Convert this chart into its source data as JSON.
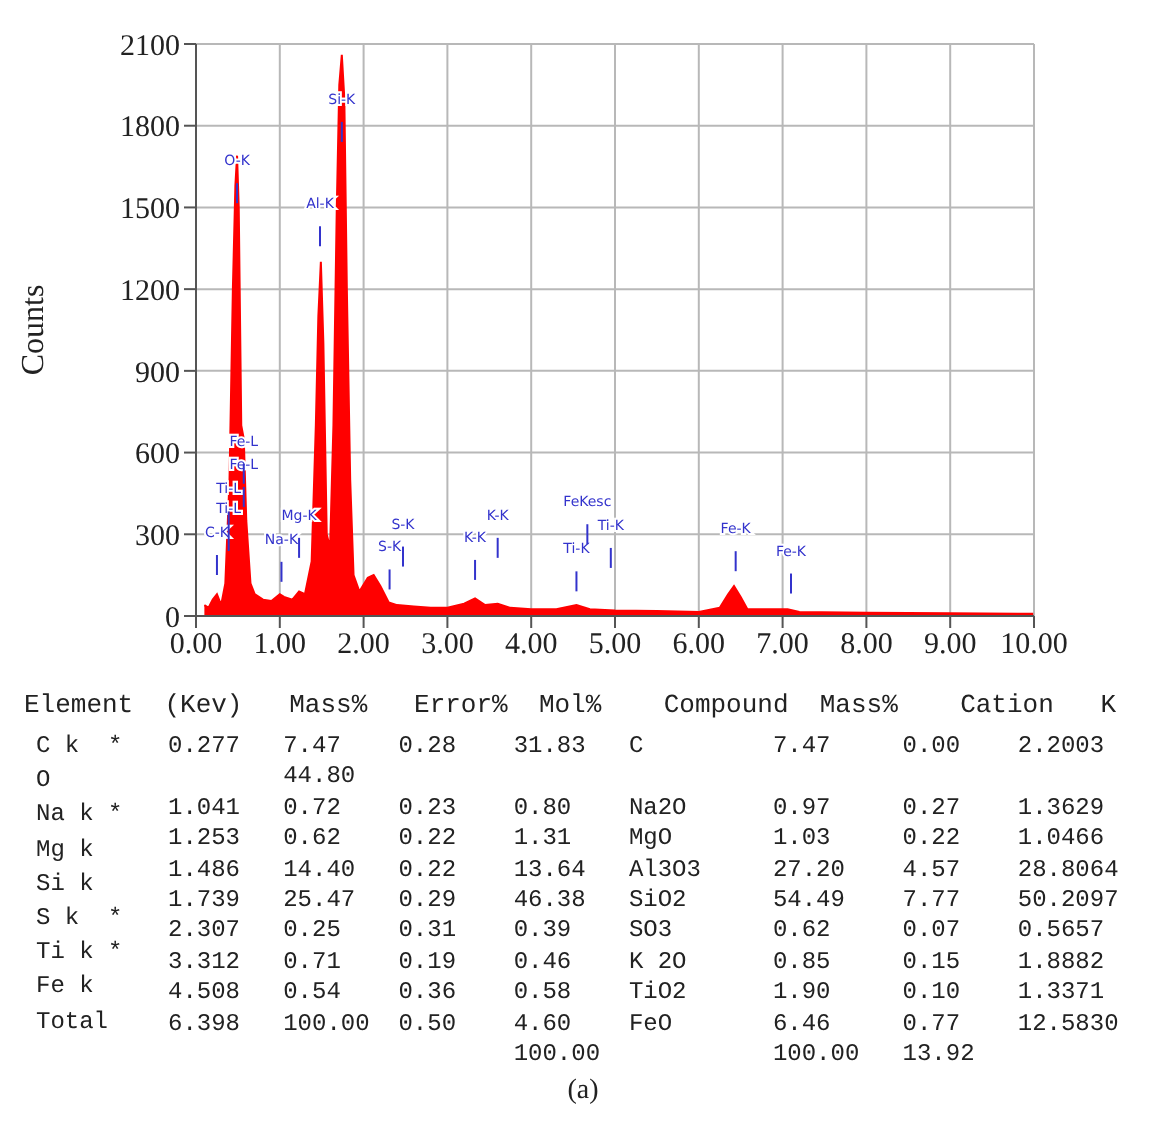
{
  "chart_data": {
    "type": "area",
    "ylabel": "Counts",
    "color": "#ff0000",
    "x": [
      0.1,
      0.15,
      0.2,
      0.25,
      0.3,
      0.35,
      0.4,
      0.44,
      0.47,
      0.49,
      0.51,
      0.54,
      0.57,
      0.6,
      0.65,
      0.7,
      0.8,
      0.9,
      1.0,
      1.05,
      1.15,
      1.23,
      1.3,
      1.38,
      1.43,
      1.46,
      1.49,
      1.52,
      1.56,
      1.6,
      1.64,
      1.68,
      1.71,
      1.74,
      1.77,
      1.8,
      1.84,
      1.88,
      1.95,
      2.05,
      2.12,
      2.2,
      2.3,
      2.4,
      2.6,
      2.8,
      3.0,
      3.2,
      3.33,
      3.45,
      3.6,
      3.75,
      4.0,
      4.3,
      4.54,
      4.7,
      5.0,
      5.5,
      6.0,
      6.25,
      6.35,
      6.42,
      6.5,
      6.58,
      7.06,
      7.2,
      8.0,
      9.0,
      9.99
    ],
    "values": [
      40,
      30,
      60,
      80,
      40,
      120,
      500,
      1200,
      1580,
      1690,
      1500,
      700,
      650,
      350,
      120,
      80,
      60,
      55,
      80,
      70,
      60,
      90,
      80,
      200,
      700,
      1100,
      1300,
      1000,
      300,
      250,
      700,
      1500,
      1950,
      2060,
      1900,
      1200,
      500,
      150,
      90,
      140,
      150,
      110,
      50,
      40,
      35,
      30,
      30,
      45,
      65,
      40,
      45,
      30,
      25,
      25,
      40,
      25,
      20,
      18,
      15,
      30,
      80,
      110,
      70,
      25,
      25,
      15,
      12,
      10,
      8
    ],
    "xlim": [
      0,
      10
    ],
    "xticks": [
      {
        "value": 0,
        "label": "0.00"
      },
      {
        "value": 1,
        "label": "1.00"
      },
      {
        "value": 2,
        "label": "2.00"
      },
      {
        "value": 3,
        "label": "3.00"
      },
      {
        "value": 4,
        "label": "4.00"
      },
      {
        "value": 5,
        "label": "5.00"
      },
      {
        "value": 6,
        "label": "6.00"
      },
      {
        "value": 7,
        "label": "7.00"
      },
      {
        "value": 8,
        "label": "8.00"
      },
      {
        "value": 9,
        "label": "9.00"
      },
      {
        "value": 10,
        "label": "10.00"
      }
    ],
    "ylim": [
      0,
      2100
    ],
    "yticks": [
      0,
      300,
      600,
      900,
      1200,
      1500,
      1800,
      2100
    ],
    "grid": true,
    "annotations": [
      "C-K",
      "Ti-L",
      "Ti-L",
      "Fe-L",
      "Fe-L",
      "O-K",
      "Na-K",
      "Mg-K",
      "Al-K",
      "Si-K",
      "S-K",
      "S-K",
      "K-K",
      "K-K",
      "Ti-K",
      "FeKesc",
      "Ti-K",
      "Fe-K",
      "Fe-K",
      "Element  (Kev)   Mass%   Error%  Mol%    Compound  Mass%    Cation   K",
      "C k  *",
      "O",
      "Na k *",
      "Mg k",
      "Si k",
      "S k  *",
      "Ti k *",
      "Fe k",
      "Total",
      "0.277   7.47    0.28    31.83   C         7.47     0.00    2.2003",
      "        44.80",
      "1.041   0.72    0.23    0.80    Na2O      0.97     0.27    1.3629",
      "1.253   0.62    0.22    1.31    MgO       1.03     0.22    1.0466",
      "1.486   14.40   0.22    13.64   Al3O3     27.20    4.57    28.8064",
      "1.739   25.47   0.29    46.38   SiO2      54.49    7.77    50.2097",
      "2.307   0.25    0.31    0.39    SO3       0.62     0.07    0.5657",
      "3.312   0.71    0.19    0.46    K 2O      0.85     0.15    1.8882",
      "4.508   0.54    0.36    0.58    TiO2      1.90     0.10    1.3371",
      "6.398   100.00  0.50    4.60    FeO       6.46     0.77    12.5830",
      "                        100.00            100.00   13.92",
      "(a)"
    ]
  }
}
